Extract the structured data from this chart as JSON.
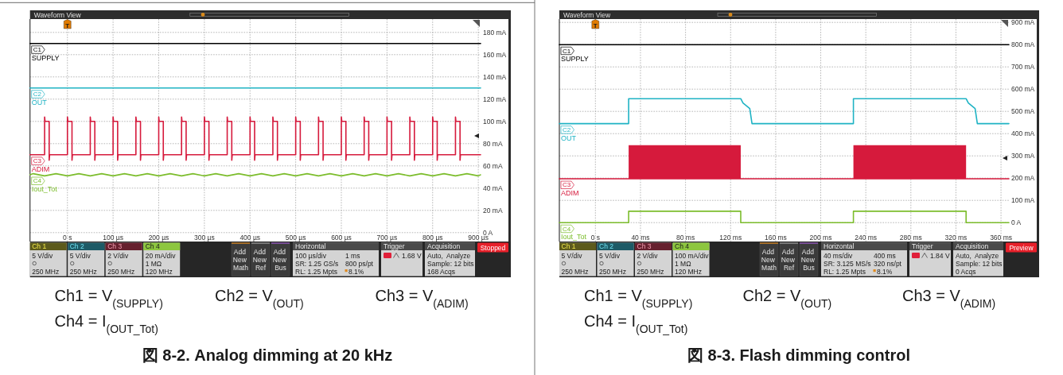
{
  "chart_data": [
    {
      "type": "line",
      "title": "図 8-2. Analog dimming at 20 kHz",
      "xlim": [
        -82,
        905
      ],
      "xticks": [
        {
          "value": 0,
          "label": "0 s"
        },
        {
          "value": 100,
          "label": "100 µs"
        },
        {
          "value": 200,
          "label": "200 µs"
        },
        {
          "value": 300,
          "label": "300 µs"
        },
        {
          "value": 400,
          "label": "400 µs"
        },
        {
          "value": 500,
          "label": "500 µs"
        },
        {
          "value": 600,
          "label": "600 µs"
        },
        {
          "value": 700,
          "label": "700 µs"
        },
        {
          "value": 800,
          "label": "800 µs"
        },
        {
          "value": 900,
          "label": "900 µs"
        }
      ],
      "ylim": [
        -8,
        192
      ],
      "yticks": [
        {
          "value": 0,
          "label": "0 A"
        },
        {
          "value": 20,
          "label": "20 mA"
        },
        {
          "value": 40,
          "label": "40 mA"
        },
        {
          "value": 60,
          "label": "60 mA"
        },
        {
          "value": 80,
          "label": "80 mA"
        },
        {
          "value": 100,
          "label": "100 mA"
        },
        {
          "value": 120,
          "label": "120 mA"
        },
        {
          "value": 140,
          "label": "140 mA"
        },
        {
          "value": 160,
          "label": "160 mA"
        },
        {
          "value": 180,
          "label": "180 mA"
        }
      ],
      "grid": true,
      "series": [
        {
          "name": "C1 SUPPLY",
          "color": "#000000",
          "x": [
            -82,
            410,
            905
          ],
          "values": [
            170,
            170,
            170
          ]
        },
        {
          "name": "C2 OUT",
          "color": "#1fb3c4",
          "x": [
            -82,
            410,
            905
          ],
          "values": [
            130,
            130,
            130
          ]
        },
        {
          "name": "C3 ADIM",
          "color": "#d61a3c",
          "x": [
            -82,
            -50,
            -50,
            -49,
            -40,
            -40,
            -39,
            0,
            0,
            1,
            10,
            10,
            11,
            50,
            50,
            51,
            60,
            60,
            61,
            100,
            100,
            101,
            110,
            110,
            111,
            150,
            150,
            151,
            160,
            160,
            161,
            200,
            200,
            201,
            210,
            210,
            211,
            250,
            250,
            251,
            260,
            260,
            261,
            300,
            300,
            301,
            310,
            310,
            311,
            350,
            350,
            351,
            360,
            360,
            361,
            400,
            400,
            401,
            410,
            410,
            411,
            450,
            450,
            451,
            460,
            460,
            461,
            500,
            500,
            501,
            510,
            510,
            511,
            550,
            550,
            551,
            560,
            560,
            561,
            600,
            600,
            601,
            610,
            610,
            611,
            650,
            650,
            651,
            660,
            660,
            661,
            700,
            700,
            701,
            710,
            710,
            711,
            750,
            750,
            751,
            760,
            760,
            761,
            800,
            800,
            801,
            810,
            810,
            811,
            850,
            850,
            851,
            860,
            860,
            861,
            905
          ],
          "values": [
            70,
            70,
            104,
            100,
            100,
            65,
            70,
            70,
            104,
            100,
            100,
            65,
            70,
            70,
            104,
            100,
            100,
            65,
            70,
            70,
            104,
            100,
            100,
            65,
            70,
            70,
            104,
            100,
            100,
            65,
            70,
            70,
            104,
            100,
            100,
            65,
            70,
            70,
            104,
            100,
            100,
            65,
            70,
            70,
            104,
            100,
            100,
            65,
            70,
            70,
            104,
            100,
            100,
            65,
            70,
            70,
            104,
            100,
            100,
            65,
            70,
            70,
            104,
            100,
            100,
            65,
            70,
            70,
            104,
            100,
            100,
            65,
            70,
            70,
            104,
            100,
            100,
            65,
            70,
            70,
            104,
            100,
            100,
            65,
            70,
            70,
            104,
            100,
            100,
            65,
            70,
            70,
            104,
            100,
            100,
            65,
            70,
            70,
            104,
            100,
            100,
            65,
            70,
            70,
            104,
            100,
            100,
            65,
            70,
            70,
            104,
            100,
            100,
            65,
            70,
            70
          ]
        },
        {
          "name": "C4 Iout_Tot",
          "color": "#7cbd2c",
          "x": [
            -82,
            -75,
            -50,
            -25,
            0,
            25,
            50,
            75,
            100,
            125,
            150,
            175,
            200,
            225,
            250,
            275,
            300,
            325,
            350,
            375,
            400,
            425,
            450,
            475,
            500,
            525,
            550,
            575,
            600,
            625,
            650,
            675,
            700,
            725,
            750,
            775,
            800,
            825,
            850,
            875,
            900,
            905
          ],
          "values": [
            52,
            53,
            51,
            53,
            51,
            53,
            51,
            53,
            51,
            53,
            51,
            53,
            51,
            53,
            51,
            53,
            51,
            53,
            51,
            53,
            51,
            53,
            51,
            53,
            51,
            53,
            51,
            53,
            51,
            53,
            51,
            53,
            51,
            53,
            51,
            53,
            51,
            53,
            51,
            53,
            51,
            52
          ]
        }
      ],
      "annotations": [
        "Waveform View",
        {
          "text": "T",
          "x": 0
        },
        "Ch 1",
        "5 V/div",
        "250 MHz",
        "Ch 2",
        "5 V/div",
        "250 MHz",
        "Ch 3",
        "2 V/div",
        "250 MHz",
        "Ch 4",
        "20 mA/div",
        "1 MΩ",
        "120 MHz",
        "Add New Math",
        "Add New Ref",
        "Add New Bus",
        "Horizontal",
        "100 µs/div",
        "1 ms",
        "SR: 1.25 GS/s",
        "800 ps/pt",
        "RL: 1.25 Mpts",
        "8.1%",
        "Trigger",
        "1.68 V",
        "Acquisition",
        "Auto,",
        "Analyze",
        "Sample: 12 bits",
        "168 Acqs",
        "Stopped",
        "Ch1 = V$_{(SUPPLY)}$",
        "Ch2 = V$_{(OUT)}$",
        "Ch3 = V$_{(ADIM)}$",
        "Ch4 = I$_{(OUT_Tot)}$"
      ]
    },
    {
      "type": "line",
      "title": "図 8-3. Flash dimming control",
      "xlim": [
        -32,
        367
      ],
      "xticks": [
        {
          "value": 0,
          "label": "0 s"
        },
        {
          "value": 40,
          "label": "40 ms"
        },
        {
          "value": 80,
          "label": "80 ms"
        },
        {
          "value": 120,
          "label": "120 ms"
        },
        {
          "value": 160,
          "label": "160 ms"
        },
        {
          "value": 200,
          "label": "200 ms"
        },
        {
          "value": 240,
          "label": "240 ms"
        },
        {
          "value": 280,
          "label": "280 ms"
        },
        {
          "value": 320,
          "label": "320 ms"
        },
        {
          "value": 360,
          "label": "360 ms"
        }
      ],
      "ylim": [
        -85,
        915
      ],
      "yticks": [
        {
          "value": 0,
          "label": "0 A"
        },
        {
          "value": 100,
          "label": "100 mA"
        },
        {
          "value": 200,
          "label": "200 mA"
        },
        {
          "value": 300,
          "label": "300 mA"
        },
        {
          "value": 400,
          "label": "400 mA"
        },
        {
          "value": 500,
          "label": "500 mA"
        },
        {
          "value": 600,
          "label": "600 mA"
        },
        {
          "value": 700,
          "label": "700 mA"
        },
        {
          "value": 800,
          "label": "800 mA"
        },
        {
          "value": 900,
          "label": "900 mA"
        }
      ],
      "grid": true,
      "series": [
        {
          "name": "C1 SUPPLY",
          "color": "#000000",
          "x": [
            -32,
            167,
            367
          ],
          "values": [
            800,
            800,
            800
          ]
        },
        {
          "name": "C2 OUT",
          "color": "#1fb3c4",
          "x": [
            -32,
            29.5,
            29.5,
            129,
            131,
            137,
            139,
            229,
            229,
            329,
            331,
            337,
            339,
            367
          ],
          "values": [
            445,
            445,
            557,
            557,
            538,
            513,
            445,
            445,
            557,
            557,
            538,
            513,
            445,
            445
          ]
        },
        {
          "name": "C3 ADIM",
          "color": "#d61a3c",
          "x": [
            -32,
            29.5,
            129,
            179,
            229,
            329,
            367
          ],
          "values": [
            197,
            197,
            197,
            197,
            197,
            197,
            197
          ],
          "lower": [
            null,
            197,
            197,
            null,
            197,
            197,
            null
          ],
          "upper": [
            null,
            348,
            348,
            null,
            348,
            348,
            null
          ]
        },
        {
          "name": "C4 Iout_Tot",
          "color": "#7cbd2c",
          "x": [
            -32,
            29.5,
            29.5,
            129,
            129,
            229,
            229,
            329,
            329,
            367
          ],
          "values": [
            0,
            0,
            51,
            51,
            0,
            0,
            51,
            51,
            0,
            0
          ]
        }
      ],
      "annotations": [
        "Waveform View",
        {
          "text": "T",
          "x": 0
        },
        "Ch 1",
        "5 V/div",
        "250 MHz",
        "Ch 2",
        "5 V/div",
        "250 MHz",
        "Ch 3",
        "2 V/div",
        "250 MHz",
        "Ch 4",
        "100 mA/div",
        "1 MΩ",
        "120 MHz",
        "Add New Math",
        "Add New Ref",
        "Add New Bus",
        "Horizontal",
        "40 ms/div",
        "400 ms",
        "SR: 3.125 MS/s",
        "320 ns/pt",
        "RL: 1.25 Mpts",
        "8.1%",
        "Trigger",
        "1.84 V",
        "Acquisition",
        "Auto,",
        "Analyze",
        "Sample: 12 bits",
        "0 Acqs",
        "Preview",
        "Ch1 = V$_{(SUPPLY)}$",
        "Ch2 = V$_{(OUT)}$",
        "Ch3 = V$_{(ADIM)}$",
        "Ch4 = I$_{(OUT_Tot)}$"
      ]
    }
  ]
}
